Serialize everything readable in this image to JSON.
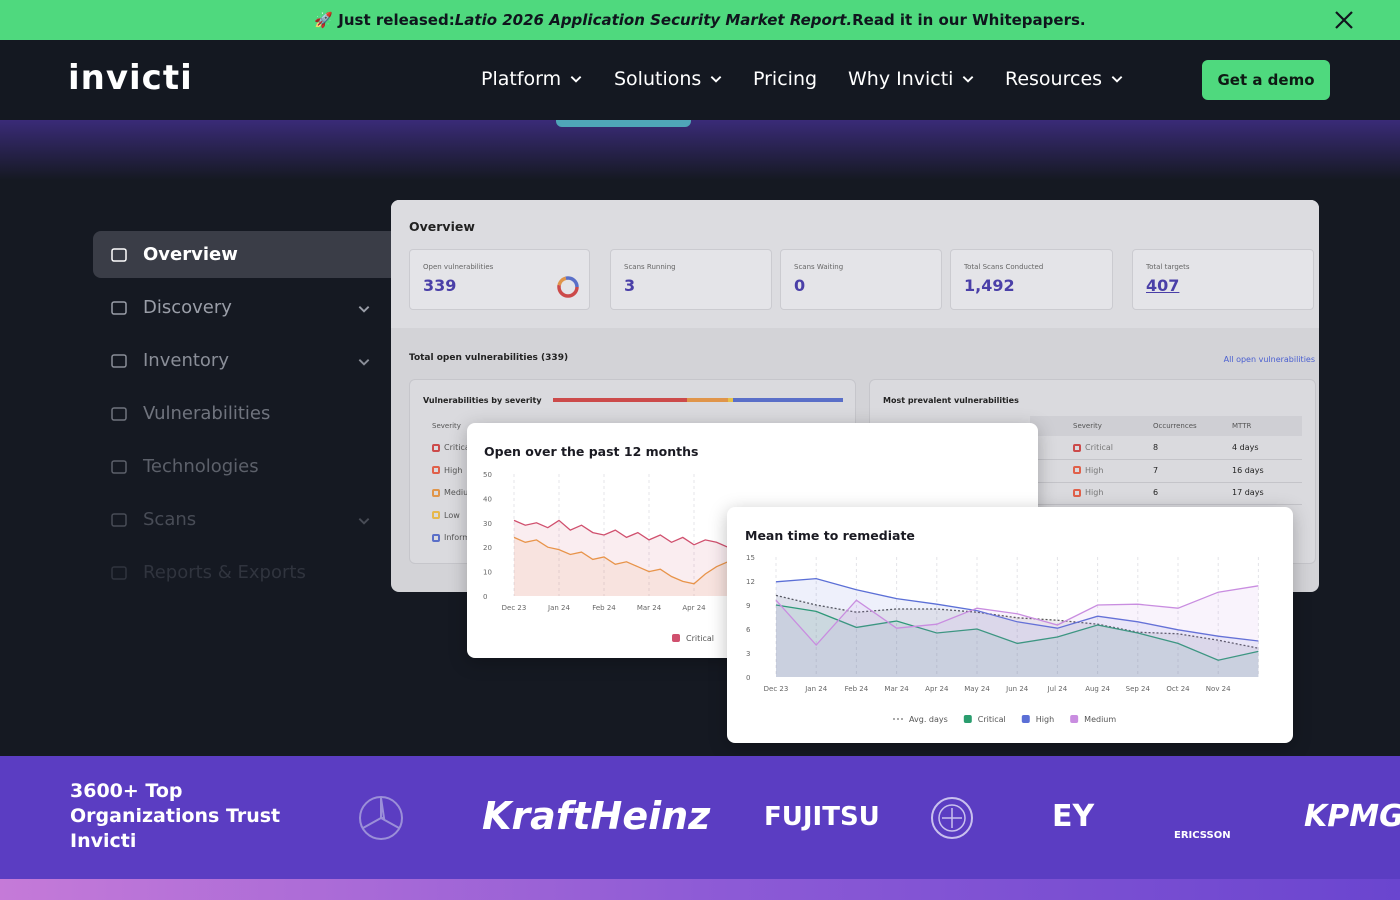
{
  "banner": {
    "prefix": "🚀 Just released: ",
    "report": "Latio 2026 Application Security Market Report.",
    "suffix": " Read it in our Whitepapers."
  },
  "nav": {
    "logo": "invicti",
    "items": [
      {
        "label": "Platform",
        "dropdown": true
      },
      {
        "label": "Solutions",
        "dropdown": true
      },
      {
        "label": "Pricing",
        "dropdown": false
      },
      {
        "label": "Why Invicti",
        "dropdown": true
      },
      {
        "label": "Resources",
        "dropdown": true
      }
    ],
    "cta": "Get a demo"
  },
  "sidebar": [
    {
      "label": "Overview",
      "expandable": false
    },
    {
      "label": "Discovery",
      "expandable": true
    },
    {
      "label": "Inventory",
      "expandable": true
    },
    {
      "label": "Vulnerabilities",
      "expandable": false
    },
    {
      "label": "Technologies",
      "expandable": false
    },
    {
      "label": "Scans",
      "expandable": true
    },
    {
      "label": "Reports & Exports",
      "expandable": false
    }
  ],
  "dashboard": {
    "title": "Overview",
    "stats": [
      {
        "label": "Open vulnerabilities",
        "value": 339
      },
      {
        "label": "Scans Running",
        "value": 3
      },
      {
        "label": "Scans Waiting",
        "value": 0
      },
      {
        "label": "Total Scans Conducted",
        "value": "1,492"
      },
      {
        "label": "Total targets",
        "value": 407
      }
    ],
    "section_title": "Total open vulnerabilities (339)",
    "link": "All open vulnerabilities",
    "severity_card": {
      "title": "Vulnerabilities by severity",
      "header": "Severity",
      "rows": [
        "Critical",
        "High",
        "Medium",
        "Low",
        "Informational"
      ]
    },
    "prevalent": {
      "title": "Most prevalent vulnerabilities",
      "columns": [
        "Severity",
        "Occurrences",
        "MTTR"
      ],
      "rows": [
        [
          "Critical",
          8,
          "4 days"
        ],
        [
          "High",
          7,
          "16 days"
        ],
        [
          "High",
          6,
          "17 days"
        ]
      ]
    }
  },
  "open_chart": {
    "type": "line",
    "title": "Open over the past 12 months",
    "categories": [
      "Dec 23",
      "Jan 24",
      "Feb 24",
      "Mar 24",
      "Apr 24"
    ],
    "ylim": [
      0,
      50
    ],
    "yticks": [
      0,
      10,
      20,
      30,
      40,
      50
    ],
    "series": [
      {
        "name": "Critical",
        "color": "#d0506e",
        "values": [
          31,
          29,
          30,
          28,
          31,
          27,
          29,
          26,
          25,
          27,
          24,
          26,
          23,
          25,
          22,
          24,
          21,
          23,
          22,
          20
        ]
      },
      {
        "color": "#e8944a",
        "values": [
          24,
          22,
          23,
          20,
          19,
          17,
          18,
          15,
          16,
          13,
          14,
          12,
          10,
          11,
          8,
          6,
          5,
          9,
          12,
          14
        ]
      }
    ]
  },
  "mttr_chart": {
    "type": "line",
    "title": "Mean time to remediate",
    "categories": [
      "Dec 23",
      "Jan 24",
      "Feb 24",
      "Mar 24",
      "Apr 24",
      "May 24",
      "Jun 24",
      "Jul 24",
      "Aug 24",
      "Sep 24",
      "Oct 24",
      "Nov 24",
      null
    ],
    "ylim": [
      0,
      15
    ],
    "yticks": [
      0,
      3,
      6,
      9,
      12,
      15
    ],
    "series": [
      {
        "name": "Avg. days",
        "color": "#555555",
        "dashed": true,
        "values": [
          10.2,
          9,
          8.1,
          8.5,
          8.5,
          8.1,
          7.4,
          7.1,
          6.6,
          5.6,
          5.4,
          4.6,
          3.6
        ]
      },
      {
        "name": "Critical",
        "color": "#2a9d6e",
        "values": [
          9,
          8.2,
          6.2,
          7,
          5.5,
          6,
          4.2,
          5,
          6.5,
          5.5,
          4.2,
          2.1,
          3.2
        ]
      },
      {
        "name": "High",
        "color": "#5b6fd6",
        "values": [
          11.9,
          12.3,
          10.9,
          9.8,
          9.1,
          8.3,
          6.9,
          6.1,
          7.6,
          6.9,
          5.9,
          5.1,
          4.5
        ]
      },
      {
        "name": "Medium",
        "color": "#c98de0",
        "values": [
          9.6,
          4,
          9.6,
          6.1,
          6.6,
          8.6,
          7.9,
          6.5,
          9,
          9.1,
          8.6,
          10.6,
          11.4
        ]
      }
    ]
  },
  "trust": {
    "text": "3600+ Top Organizations Trust Invicti",
    "logos": [
      "KraftHeinz",
      "FUJITSU",
      "EY",
      "ERICSSON",
      "KPMG"
    ]
  }
}
